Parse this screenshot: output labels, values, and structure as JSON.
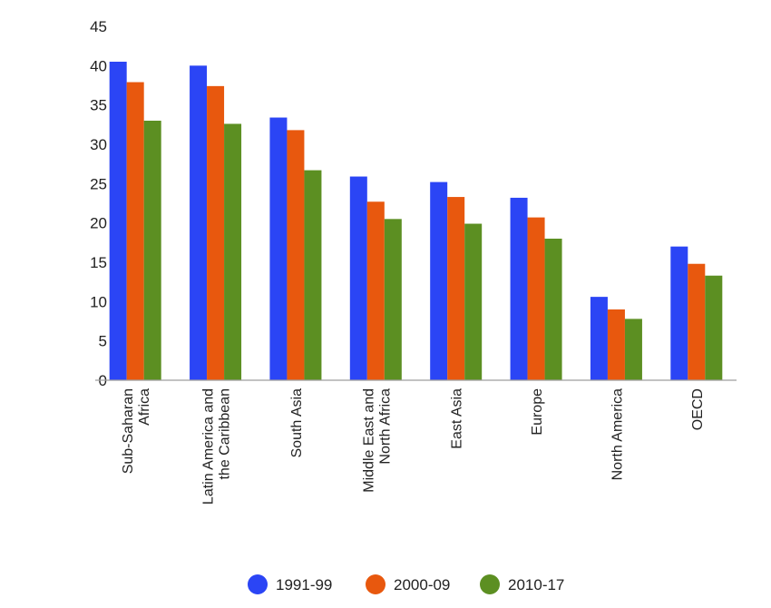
{
  "chart_data": {
    "type": "bar",
    "categories": [
      [
        "Sub-Saharan",
        "Africa"
      ],
      [
        "Latin America and",
        "the Caribbean"
      ],
      [
        "South Asia"
      ],
      [
        "Middle East and",
        "North Africa"
      ],
      [
        "East Asia"
      ],
      [
        "Europe"
      ],
      [
        "North America"
      ],
      [
        "OECD"
      ]
    ],
    "series": [
      {
        "name": "1991-99",
        "color": "#2b45f5",
        "values": [
          40.5,
          40.0,
          33.4,
          25.9,
          25.2,
          23.2,
          10.6,
          17.0
        ]
      },
      {
        "name": "2000-09",
        "color": "#e8580e",
        "values": [
          37.9,
          37.4,
          31.8,
          22.7,
          23.3,
          20.7,
          9.0,
          14.8
        ]
      },
      {
        "name": "2010-17",
        "color": "#5c8f22",
        "values": [
          33.0,
          32.6,
          26.7,
          20.5,
          19.9,
          18.0,
          7.8,
          13.3
        ]
      }
    ],
    "ylim": [
      0,
      45
    ],
    "yticks": [
      0,
      5,
      10,
      15,
      20,
      25,
      30,
      35,
      40,
      45
    ],
    "grid": false,
    "legend_position": "bottom"
  }
}
